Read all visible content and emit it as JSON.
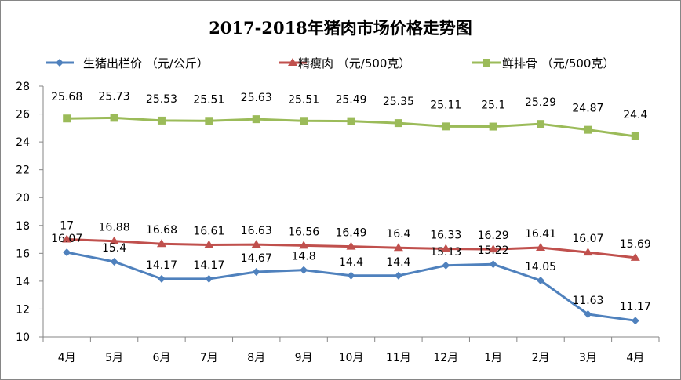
{
  "chart_data": {
    "type": "line",
    "title": "2017-2018年猪肉市场价格走势图",
    "xlabel": "",
    "ylabel": "",
    "ylim": [
      10,
      28
    ],
    "yticks": [
      10,
      12,
      14,
      16,
      18,
      20,
      22,
      24,
      26,
      28
    ],
    "grid": false,
    "legend_position": "top",
    "categories": [
      "4月",
      "5月",
      "6月",
      "7月",
      "8月",
      "9月",
      "10月",
      "11月",
      "12月",
      "1月",
      "2月",
      "3月",
      "4月"
    ],
    "series": [
      {
        "name": "生猪出栏价 （元/公斤）",
        "color": "#4f81bd",
        "marker": "diamond",
        "values": [
          16.07,
          15.4,
          14.17,
          14.17,
          14.67,
          14.8,
          14.4,
          14.4,
          15.13,
          15.22,
          14.05,
          11.63,
          11.17
        ],
        "labels": [
          "16.07",
          "15.4",
          "14.17",
          "14.17",
          "14.67",
          "14.8",
          "14.4",
          "14.4",
          "15.13",
          "15.22",
          "14.05",
          "11.63",
          "11.17"
        ]
      },
      {
        "name": "精瘦肉 （元/500克）",
        "color": "#c0504d",
        "marker": "triangle",
        "values": [
          17,
          16.88,
          16.68,
          16.61,
          16.63,
          16.56,
          16.49,
          16.4,
          16.33,
          16.29,
          16.41,
          16.07,
          15.69
        ],
        "labels": [
          "17",
          "16.88",
          "16.68",
          "16.61",
          "16.63",
          "16.56",
          "16.49",
          "16.4",
          "16.33",
          "16.29",
          "16.41",
          "16.07",
          "15.69"
        ]
      },
      {
        "name": "鲜排骨 （元/500克）",
        "color": "#9bbb59",
        "marker": "square",
        "values": [
          25.68,
          25.73,
          25.53,
          25.51,
          25.63,
          25.51,
          25.49,
          25.35,
          25.11,
          25.1,
          25.29,
          24.87,
          24.4
        ],
        "labels": [
          "25.68",
          "25.73",
          "25.53",
          "25.51",
          "25.63",
          "25.51",
          "25.49",
          "25.35",
          "25.11",
          "25.1",
          "25.29",
          "24.87",
          "24.4"
        ]
      }
    ]
  }
}
